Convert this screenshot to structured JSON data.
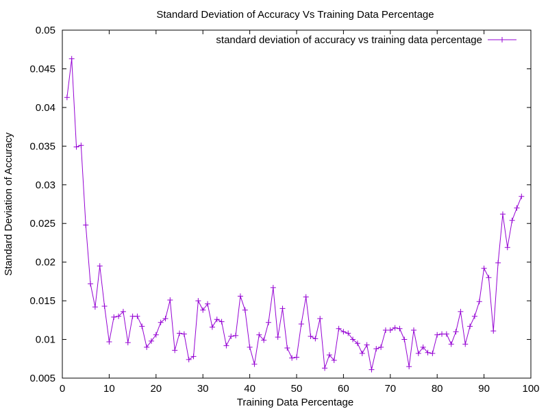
{
  "chart_data": {
    "type": "line",
    "title": "Standard Deviation of Accuracy Vs Training Data Percentage",
    "xlabel": "Training Data Percentage",
    "ylabel": "Standard Deviation of Accuracy",
    "xlim": [
      0,
      100
    ],
    "ylim": [
      0.005,
      0.05
    ],
    "x_ticks": [
      "0",
      "10",
      "20",
      "30",
      "40",
      "50",
      "60",
      "70",
      "80",
      "90",
      "100"
    ],
    "y_ticks": [
      "0.005",
      "0.01",
      "0.015",
      "0.02",
      "0.025",
      "0.03",
      "0.035",
      "0.04",
      "0.045",
      "0.05"
    ],
    "grid": false,
    "legend_position": "top-right",
    "series": [
      {
        "name": "standard deviation of accuracy vs training data percentage",
        "color": "#9400d3",
        "marker": "plus",
        "x": [
          1,
          2,
          3,
          4,
          5,
          6,
          7,
          8,
          9,
          10,
          11,
          12,
          13,
          14,
          15,
          16,
          17,
          18,
          19,
          20,
          21,
          22,
          23,
          24,
          25,
          26,
          27,
          28,
          29,
          30,
          31,
          32,
          33,
          34,
          35,
          36,
          37,
          38,
          39,
          40,
          41,
          42,
          43,
          44,
          45,
          46,
          47,
          48,
          49,
          50,
          51,
          52,
          53,
          54,
          55,
          56,
          57,
          58,
          59,
          60,
          61,
          62,
          63,
          64,
          65,
          66,
          67,
          68,
          69,
          70,
          71,
          72,
          73,
          74,
          75,
          76,
          77,
          78,
          79,
          80,
          81,
          82,
          83,
          84,
          85,
          86,
          87,
          88,
          89,
          90,
          91,
          92,
          93,
          94,
          95,
          96,
          97,
          98
        ],
        "values": [
          0.0413,
          0.0463,
          0.0349,
          0.0351,
          0.0248,
          0.0172,
          0.0142,
          0.0195,
          0.0143,
          0.0097,
          0.0129,
          0.013,
          0.0136,
          0.0096,
          0.013,
          0.013,
          0.0117,
          0.009,
          0.0098,
          0.0106,
          0.0122,
          0.0127,
          0.0151,
          0.0086,
          0.0108,
          0.0107,
          0.0074,
          0.0078,
          0.015,
          0.0138,
          0.0146,
          0.0116,
          0.0126,
          0.0123,
          0.0092,
          0.0104,
          0.0105,
          0.0156,
          0.0138,
          0.009,
          0.0068,
          0.0106,
          0.0099,
          0.0122,
          0.0167,
          0.0103,
          0.014,
          0.0089,
          0.0076,
          0.0077,
          0.012,
          0.0155,
          0.0104,
          0.0101,
          0.0127,
          0.0063,
          0.008,
          0.0073,
          0.0114,
          0.011,
          0.0108,
          0.01,
          0.0095,
          0.0082,
          0.0093,
          0.0061,
          0.0088,
          0.009,
          0.0112,
          0.0112,
          0.0115,
          0.0114,
          0.01,
          0.0065,
          0.0112,
          0.0082,
          0.009,
          0.0083,
          0.0082,
          0.0106,
          0.0107,
          0.0107,
          0.0094,
          0.011,
          0.0136,
          0.0094,
          0.0117,
          0.013,
          0.0149,
          0.0192,
          0.018,
          0.0111,
          0.0199,
          0.0262,
          0.0219,
          0.0254,
          0.027,
          0.0285
        ]
      }
    ]
  }
}
